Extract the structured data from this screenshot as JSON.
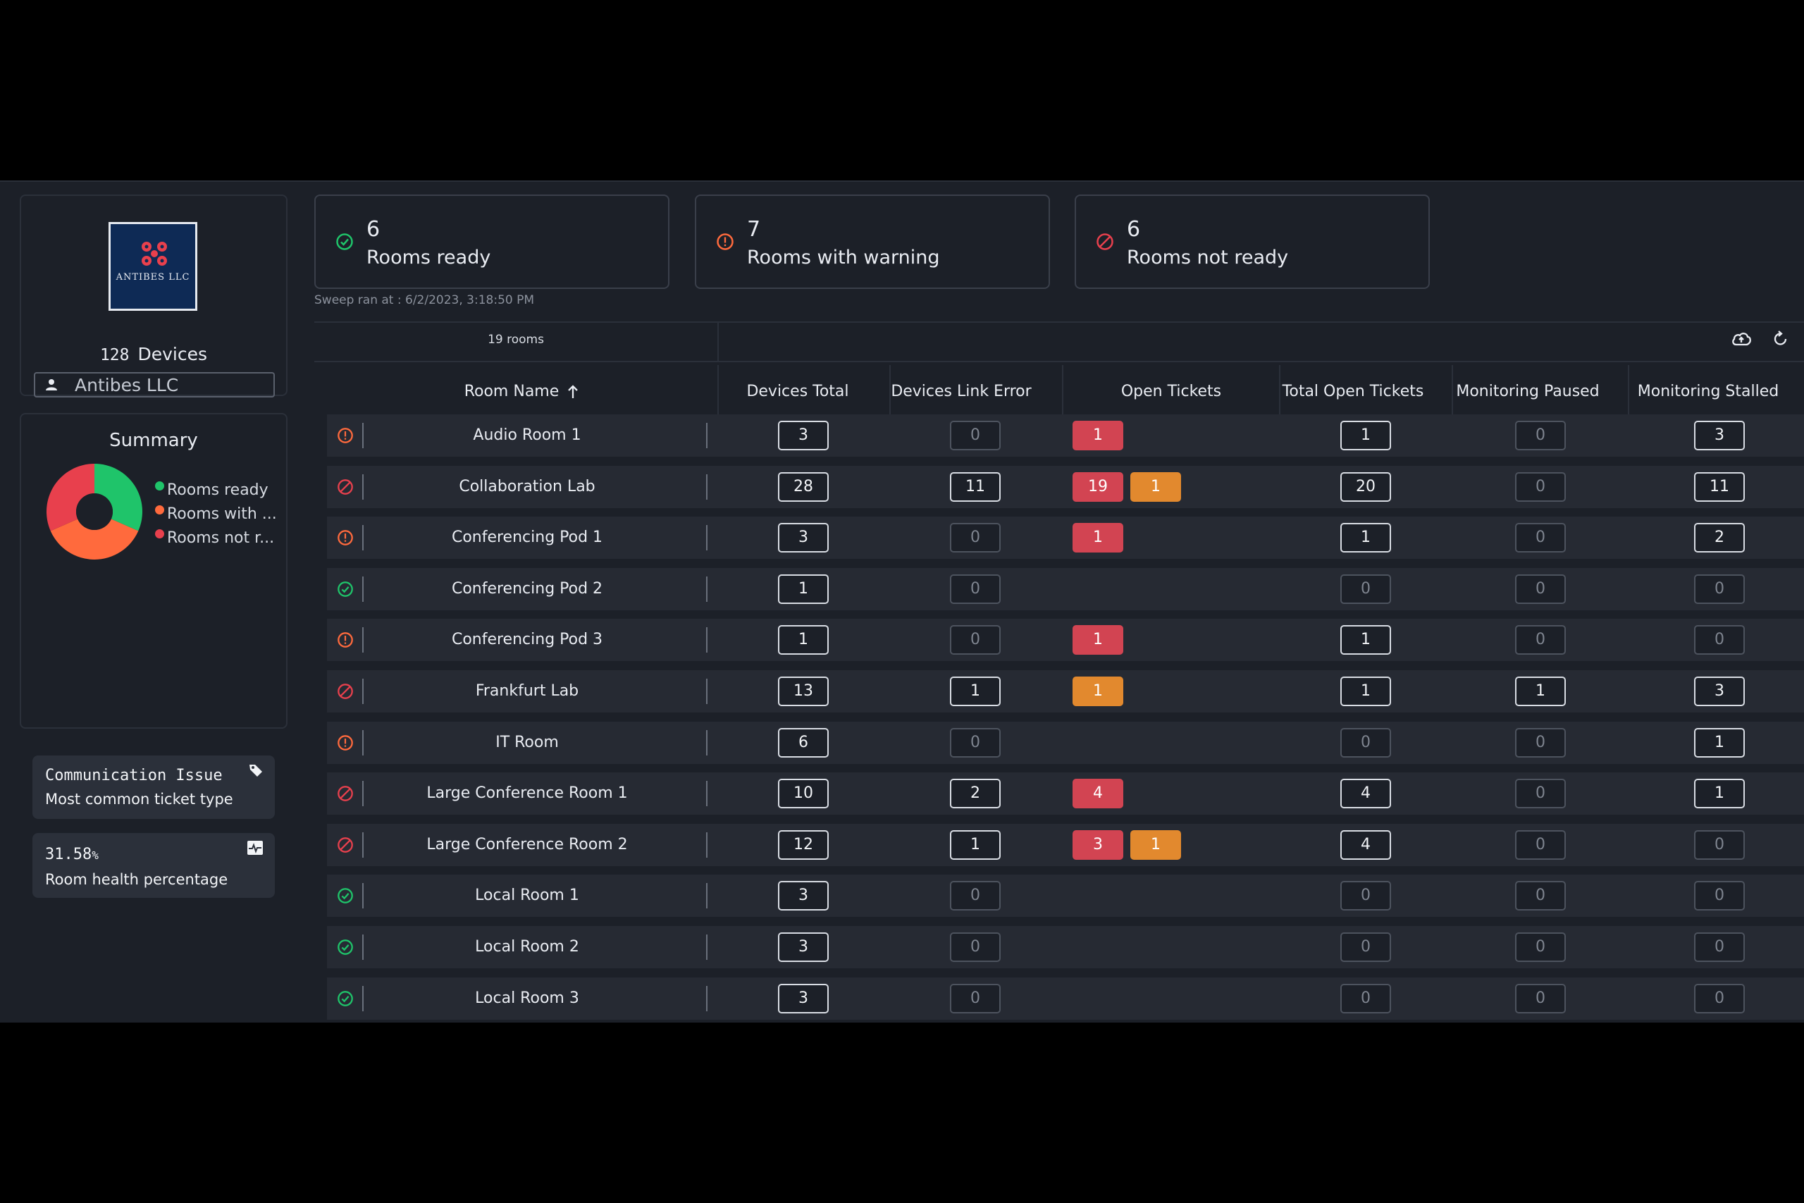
{
  "org": {
    "logo_text": "ANTIBES LLC",
    "device_count": "128",
    "devices_label": "Devices",
    "selected": "Antibes LLC"
  },
  "summary": {
    "title": "Summary",
    "legend": [
      "Rooms ready",
      "Rooms with ...",
      "Rooms not r..."
    ],
    "colors": {
      "ready": "#1fc46a",
      "warning": "#ff6a3d",
      "not_ready": "#e8404d"
    },
    "ticket_type_value": "Communication Issue",
    "ticket_type_label": "Most common ticket type",
    "health_value": "31.58",
    "health_unit": "%",
    "health_label": "Room health percentage"
  },
  "chart_data": {
    "type": "pie",
    "categories": [
      "Rooms ready",
      "Rooms with warning",
      "Rooms not ready"
    ],
    "values": [
      6,
      7,
      6
    ],
    "colors": [
      "#1fc46a",
      "#ff6a3d",
      "#e8404d"
    ]
  },
  "stats": [
    {
      "value": "6",
      "label": "Rooms ready",
      "icon": "check-circle-icon"
    },
    {
      "value": "7",
      "label": "Rooms with warning",
      "icon": "warning-circle-icon"
    },
    {
      "value": "6",
      "label": "Rooms not ready",
      "icon": "blocked-circle-icon"
    }
  ],
  "sweep_text": "Sweep ran at : 6/2/2023, 3:18:50 PM",
  "table": {
    "count_label": "19 rooms",
    "headers": {
      "room_name": "Room Name",
      "devices_total": "Devices Total",
      "devices_link_error": "Devices Link Error",
      "open_tickets": "Open Tickets",
      "total_open_tickets": "Total Open Tickets",
      "monitoring_paused": "Monitoring Paused",
      "monitoring_stalled": "Monitoring Stalled"
    },
    "rows": [
      {
        "status": "warning",
        "name": "Audio Room 1",
        "total": "3",
        "link": "0",
        "tickets": [
          {
            "v": "1",
            "c": "red"
          }
        ],
        "open": "1",
        "paused": "0",
        "stalled": "3"
      },
      {
        "status": "blocked",
        "name": "Collaboration Lab",
        "total": "28",
        "link": "11",
        "tickets": [
          {
            "v": "19",
            "c": "red"
          },
          {
            "v": "1",
            "c": "orange"
          }
        ],
        "open": "20",
        "paused": "0",
        "stalled": "11"
      },
      {
        "status": "warning",
        "name": "Conferencing Pod 1",
        "total": "3",
        "link": "0",
        "tickets": [
          {
            "v": "1",
            "c": "red"
          }
        ],
        "open": "1",
        "paused": "0",
        "stalled": "2"
      },
      {
        "status": "ready",
        "name": "Conferencing Pod 2",
        "total": "1",
        "link": "0",
        "tickets": [],
        "open": "0",
        "paused": "0",
        "stalled": "0"
      },
      {
        "status": "warning",
        "name": "Conferencing Pod 3",
        "total": "1",
        "link": "0",
        "tickets": [
          {
            "v": "1",
            "c": "red"
          }
        ],
        "open": "1",
        "paused": "0",
        "stalled": "0"
      },
      {
        "status": "blocked",
        "name": "Frankfurt Lab",
        "total": "13",
        "link": "1",
        "tickets": [
          {
            "v": "1",
            "c": "orange"
          }
        ],
        "open": "1",
        "paused": "1",
        "stalled": "3"
      },
      {
        "status": "warning",
        "name": "IT Room",
        "total": "6",
        "link": "0",
        "tickets": [],
        "open": "0",
        "paused": "0",
        "stalled": "1"
      },
      {
        "status": "blocked",
        "name": "Large Conference Room 1",
        "total": "10",
        "link": "2",
        "tickets": [
          {
            "v": "4",
            "c": "red"
          }
        ],
        "open": "4",
        "paused": "0",
        "stalled": "1"
      },
      {
        "status": "blocked",
        "name": "Large Conference Room 2",
        "total": "12",
        "link": "1",
        "tickets": [
          {
            "v": "3",
            "c": "red"
          },
          {
            "v": "1",
            "c": "orange"
          }
        ],
        "open": "4",
        "paused": "0",
        "stalled": "0"
      },
      {
        "status": "ready",
        "name": "Local Room 1",
        "total": "3",
        "link": "0",
        "tickets": [],
        "open": "0",
        "paused": "0",
        "stalled": "0"
      },
      {
        "status": "ready",
        "name": "Local Room 2",
        "total": "3",
        "link": "0",
        "tickets": [],
        "open": "0",
        "paused": "0",
        "stalled": "0"
      },
      {
        "status": "ready",
        "name": "Local Room 3",
        "total": "3",
        "link": "0",
        "tickets": [],
        "open": "0",
        "paused": "0",
        "stalled": "0"
      }
    ]
  },
  "icons": {
    "upload": "cloud-upload-icon",
    "refresh": "refresh-icon",
    "sort": "arrow-up-icon",
    "tag": "tag-icon",
    "health": "health-icon",
    "user": "user-icon"
  }
}
